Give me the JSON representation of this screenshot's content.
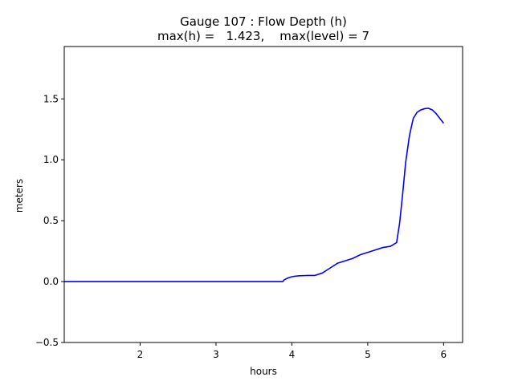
{
  "chart_data": {
    "type": "line",
    "title": "Gauge 107 : Flow Depth (h)",
    "subtitle": "max(h) =   1.423,    max(level) = 7",
    "xlabel": "hours",
    "ylabel": "meters",
    "xlim": [
      1.0,
      6.25
    ],
    "ylim": [
      -0.5,
      1.93
    ],
    "xticks": [
      2,
      3,
      4,
      5,
      6
    ],
    "yticks": [
      -0.5,
      0.0,
      0.5,
      1.0,
      1.5
    ],
    "xtick_labels": [
      "2",
      "3",
      "4",
      "5",
      "6"
    ],
    "ytick_labels": [
      "−0.5",
      "0.0",
      "0.5",
      "1.0",
      "1.5"
    ],
    "grid": false,
    "series": [
      {
        "color": "#0000ff",
        "x": [
          1.0,
          2.0,
          3.0,
          3.88,
          3.9,
          3.95,
          4.0,
          4.05,
          4.1,
          4.2,
          4.3,
          4.4,
          4.5,
          4.6,
          4.7,
          4.8,
          4.9,
          5.0,
          5.1,
          5.2,
          5.3,
          5.38,
          5.42,
          5.46,
          5.5,
          5.55,
          5.6,
          5.65,
          5.7,
          5.75,
          5.8,
          5.85,
          5.9,
          5.95,
          6.0
        ],
        "y": [
          0.0,
          0.0,
          0.0,
          0.0,
          0.015,
          0.03,
          0.04,
          0.045,
          0.048,
          0.05,
          0.05,
          0.07,
          0.11,
          0.15,
          0.17,
          0.19,
          0.22,
          0.24,
          0.26,
          0.28,
          0.29,
          0.32,
          0.48,
          0.72,
          0.98,
          1.2,
          1.34,
          1.39,
          1.41,
          1.42,
          1.423,
          1.41,
          1.38,
          1.34,
          1.3
        ]
      }
    ]
  }
}
